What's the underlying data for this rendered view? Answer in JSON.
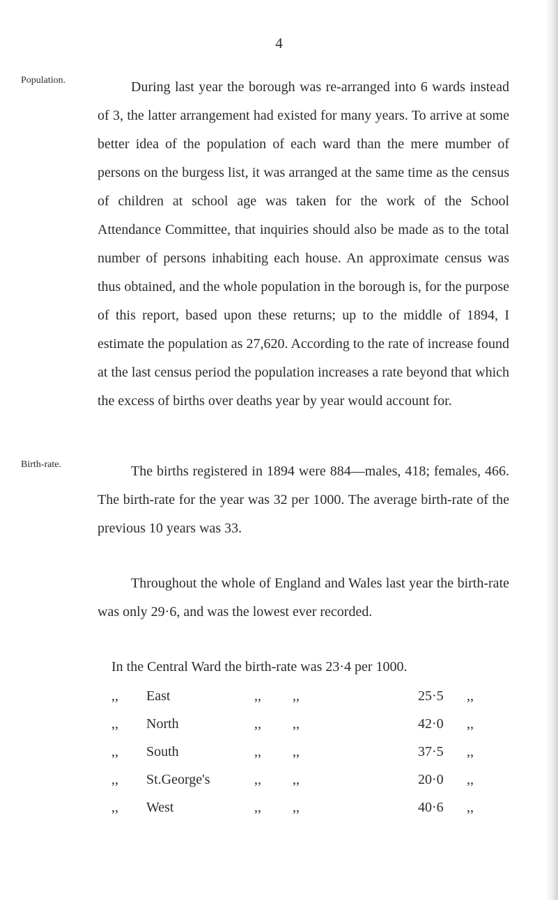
{
  "page_number": "4",
  "sections": {
    "population": {
      "margin_label": "Population.",
      "paragraph": "During last year the borough was re-arranged into 6 wards instead of 3, the latter arrangement had existed for many years. To arrive at some better idea of the population of each ward than the mere mumber of persons on the burgess list, it was arranged at the same time as the census of children at school age was taken for the work of the School Attendance Committee, that inquiries should also be made as to the total number of persons inhabiting each house. An approximate census was thus obtained, and the whole population in the borough is, for the purpose of this report, based upon these returns; up to the middle of 1894, I estimate the population as 27,620. According to the rate of increase found at the last census period the population increases a rate beyond that which the excess of births over deaths year by year would account for."
    },
    "birth_rate": {
      "margin_label": "Birth-rate.",
      "paragraph1": "The births registered in 1894 were 884—males, 418; females, 466. The birth-rate for the year was 32 per 1000. The average birth-rate of the previous 10 years was 33.",
      "paragraph2": "Throughout the whole of England and Wales last year the birth-rate was only 29·6, and was the lowest ever recorded.",
      "table_header": "In the Central Ward the birth-rate was 23·4 per 1000.",
      "rows": [
        {
          "d1": ",,",
          "name": "East",
          "d2": ",,",
          "d3": ",,",
          "val": "25·5",
          "d4": ",,"
        },
        {
          "d1": ",,",
          "name": "North",
          "d2": ",,",
          "d3": ",,",
          "val": "42·0",
          "d4": ",,"
        },
        {
          "d1": ",,",
          "name": "South",
          "d2": ",,",
          "d3": ",,",
          "val": "37·5",
          "d4": ",,"
        },
        {
          "d1": ",,",
          "name": "St.George's",
          "d2": ",,",
          "d3": ",,",
          "val": "20·0",
          "d4": ",,"
        },
        {
          "d1": ",,",
          "name": "West",
          "d2": ",,",
          "d3": ",,",
          "val": "40·6",
          "d4": ",,"
        }
      ]
    }
  }
}
